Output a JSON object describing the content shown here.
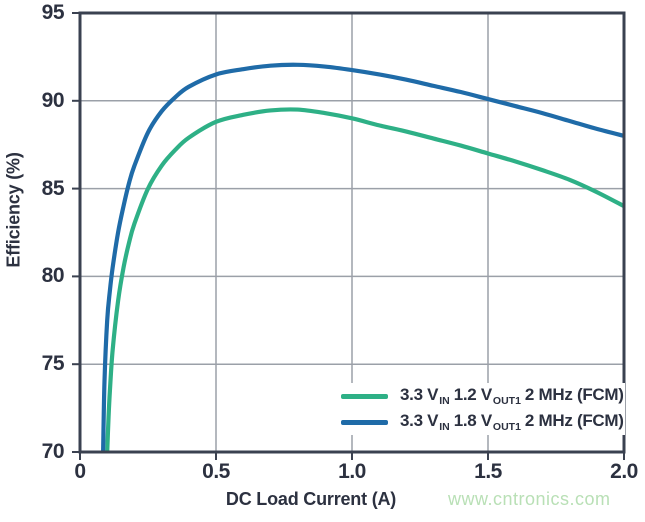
{
  "colors": {
    "background": "#ffffff",
    "axis": "#3a4150",
    "grid": "#9ba0a8",
    "text": "#2c3140",
    "watermark": "#b9e0b6"
  },
  "axes": {
    "x_label": "DC Load Current (A)",
    "y_label": "Efficiency (%)"
  },
  "watermark": {
    "text": "www.cntronics.com"
  },
  "legend": {
    "items": [
      {
        "p1": "3.3 V",
        "s1": "IN",
        "p2": "1.2 V",
        "s2": "OUT1",
        "p3": "2 MHz (FCM)"
      },
      {
        "p1": "3.3 V",
        "s1": "IN",
        "p2": "1.8 V",
        "s2": "OUT1",
        "p3": "2 MHz (FCM)"
      }
    ]
  },
  "chart_data": {
    "type": "line",
    "title": "",
    "xlabel": "DC Load Current (A)",
    "ylabel": "Efficiency (%)",
    "xlim": [
      0,
      2
    ],
    "ylim": [
      70,
      95
    ],
    "xticks": [
      0,
      0.5,
      1.0,
      1.5,
      2.0
    ],
    "xtick_labels": [
      "0",
      "0.5",
      "1.0",
      "1.5",
      "2.0"
    ],
    "yticks": [
      70,
      75,
      80,
      85,
      90,
      95
    ],
    "ytick_labels": [
      "70",
      "75",
      "80",
      "85",
      "90",
      "95"
    ],
    "grid": true,
    "legend_position": "inside-bottom-right",
    "series": [
      {
        "name": "3.3 VIN 1.2 VOUT1 2 MHz (FCM)",
        "color": "#2eb086",
        "x": [
          0.1,
          0.105,
          0.11,
          0.12,
          0.14,
          0.16,
          0.18,
          0.2,
          0.25,
          0.3,
          0.35,
          0.4,
          0.5,
          0.6,
          0.7,
          0.8,
          0.9,
          1.0,
          1.1,
          1.2,
          1.3,
          1.4,
          1.5,
          1.6,
          1.7,
          1.8,
          1.9,
          2.0
        ],
        "y": [
          70,
          72,
          73.5,
          75.8,
          78.6,
          80.5,
          81.9,
          83.0,
          85.0,
          86.3,
          87.2,
          87.9,
          88.8,
          89.2,
          89.45,
          89.5,
          89.3,
          89.0,
          88.6,
          88.25,
          87.85,
          87.45,
          87.0,
          86.55,
          86.05,
          85.5,
          84.8,
          84.0
        ]
      },
      {
        "name": "3.3 VIN 1.8 VOUT1 2 MHz (FCM)",
        "color": "#1f6ba8",
        "x": [
          0.085,
          0.09,
          0.1,
          0.11,
          0.12,
          0.14,
          0.16,
          0.18,
          0.2,
          0.25,
          0.3,
          0.35,
          0.4,
          0.5,
          0.6,
          0.7,
          0.8,
          0.9,
          1.0,
          1.1,
          1.2,
          1.3,
          1.4,
          1.5,
          1.6,
          1.7,
          1.8,
          1.9,
          2.0
        ],
        "y": [
          70,
          74,
          77.5,
          79.2,
          80.5,
          82.5,
          84.0,
          85.3,
          86.3,
          88.2,
          89.4,
          90.2,
          90.8,
          91.5,
          91.8,
          92.0,
          92.05,
          91.95,
          91.75,
          91.5,
          91.2,
          90.85,
          90.5,
          90.1,
          89.7,
          89.3,
          88.85,
          88.4,
          88.0
        ]
      }
    ]
  }
}
